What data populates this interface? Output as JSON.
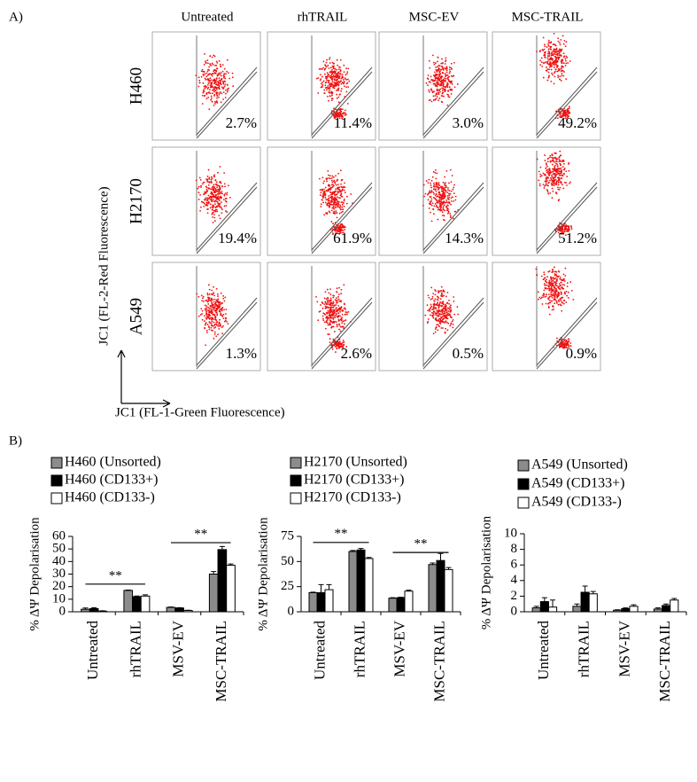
{
  "panel_a": {
    "label": "A)",
    "columns": [
      "Untreated",
      "rhTRAIL",
      "MSC-EV",
      "MSC-TRAIL"
    ],
    "rows": [
      "H460",
      "H2170",
      "A549"
    ],
    "percentages": [
      [
        "2.7%",
        "11.4%",
        "3.0%",
        "49.2%"
      ],
      [
        "19.4%",
        "61.9%",
        "14.3%",
        "51.2%"
      ],
      [
        "1.3%",
        "2.6%",
        "0.5%",
        "0.9%"
      ]
    ],
    "y_axis_label": "JC1 (FL-2-Red Fluorescence)",
    "x_axis_label": "JC1 (FL-1-Green Fluorescence)"
  },
  "panel_b_label": "B)",
  "chart_data": [
    {
      "type": "bar",
      "ylabel": "% ΔΨ Depolarisation",
      "categories": [
        "Untreated",
        "rhTRAIL",
        "MSV-EV",
        "MSC-TRAIL"
      ],
      "series": [
        {
          "name": "H460 (Unsorted)",
          "color": "#8c8c8c",
          "values": [
            2,
            17,
            3.5,
            30
          ],
          "errors": [
            1,
            0.3,
            0.3,
            2
          ]
        },
        {
          "name": "H460 (CD133+)",
          "color": "#000000",
          "values": [
            2.5,
            12,
            3,
            49.5
          ],
          "errors": [
            0.8,
            0.5,
            0.3,
            2.5
          ]
        },
        {
          "name": "H460 (CD133-)",
          "color": "#ffffff",
          "values": [
            0.5,
            12.5,
            1,
            37
          ],
          "errors": [
            0.3,
            1,
            0.2,
            1
          ]
        }
      ],
      "ylim": [
        0,
        60
      ],
      "yticks": [
        0,
        10,
        20,
        30,
        40,
        50,
        60
      ],
      "annotations": [
        {
          "text": "**",
          "y": 22
        },
        {
          "text": "**",
          "y": 55
        }
      ]
    },
    {
      "type": "bar",
      "ylabel": "% ΔΨ Depolarisation",
      "categories": [
        "Untreated",
        "rhTRAIL",
        "MSV-EV",
        "MSC-TRAIL"
      ],
      "series": [
        {
          "name": "H2170 (Unsorted)",
          "color": "#8c8c8c",
          "values": [
            19,
            60,
            13.5,
            47
          ],
          "errors": [
            0.5,
            1,
            0.5,
            1.5
          ]
        },
        {
          "name": "H2170 (CD133+)",
          "color": "#000000",
          "values": [
            19,
            61.5,
            14,
            51
          ],
          "errors": [
            8,
            1.5,
            0.5,
            7
          ]
        },
        {
          "name": "H2170 (CD133-)",
          "color": "#ffffff",
          "values": [
            22,
            53,
            20.5,
            42
          ],
          "errors": [
            5,
            1,
            1,
            2
          ]
        }
      ],
      "ylim": [
        0,
        75
      ],
      "yticks": [
        0,
        25,
        50,
        75
      ],
      "annotations": [
        {
          "text": "**",
          "y": 69
        },
        {
          "text": "**",
          "y": 59
        }
      ]
    },
    {
      "type": "bar",
      "ylabel": "% ΔΨ Depolarisation",
      "categories": [
        "Untreated",
        "rhTRAIL",
        "MSV-EV",
        "MSC-TRAIL"
      ],
      "series": [
        {
          "name": "A549 (Unsorted)",
          "color": "#8c8c8c",
          "values": [
            0.5,
            0.7,
            0.2,
            0.35
          ],
          "errors": [
            0.2,
            0.3,
            0.05,
            0.15
          ]
        },
        {
          "name": "A549 (CD133+)",
          "color": "#000000",
          "values": [
            1.3,
            2.5,
            0.4,
            0.8
          ],
          "errors": [
            0.5,
            0.8,
            0.1,
            0.2
          ]
        },
        {
          "name": "A549 (CD133-)",
          "color": "#ffffff",
          "values": [
            0.6,
            2.3,
            0.7,
            1.5
          ],
          "errors": [
            0.9,
            0.3,
            0.2,
            0.2
          ]
        }
      ],
      "ylim": [
        0,
        10
      ],
      "yticks": [
        0,
        2,
        4,
        6,
        8,
        10
      ],
      "annotations": []
    }
  ]
}
